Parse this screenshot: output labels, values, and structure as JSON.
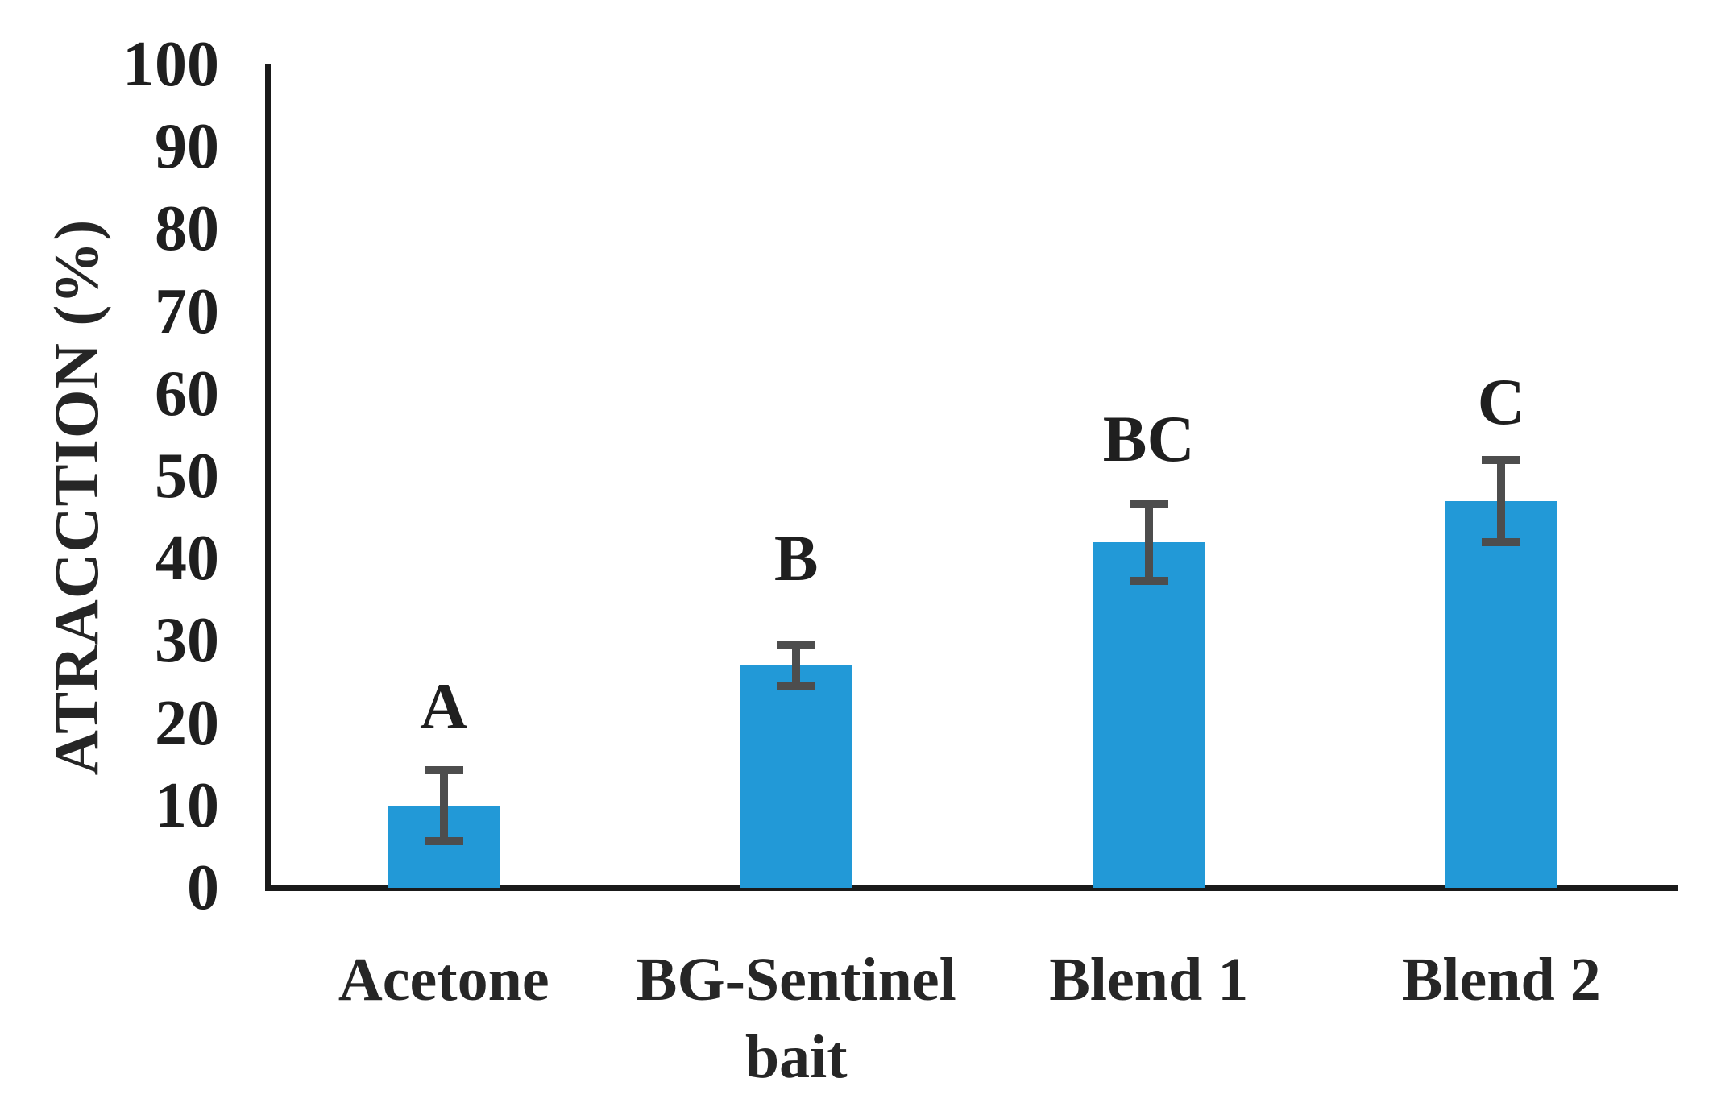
{
  "chart_data": {
    "type": "bar",
    "title": "",
    "xlabel": "",
    "ylabel": "ATRACCTION (%)",
    "ylim": [
      0,
      100
    ],
    "yticks": [
      0,
      10,
      20,
      30,
      40,
      50,
      60,
      70,
      80,
      90,
      100
    ],
    "grid": false,
    "legend": false,
    "categories": [
      "Acetone",
      "BG-Sentinel bait",
      "Blend 1",
      "Blend 2"
    ],
    "category_display": [
      "Acetone",
      "BG-Sentinel\nbait",
      "Blend 1",
      "Blend 2"
    ],
    "values": [
      10,
      27,
      42,
      47
    ],
    "errors": [
      4.3,
      2.5,
      4.7,
      5.0
    ],
    "significance_letters": [
      "A",
      "B",
      "BC",
      "C"
    ],
    "letter_center_values": [
      22,
      40,
      54.5,
      59
    ],
    "colors": {
      "bar": "#2299D7",
      "error_bar": "#4d4d4d",
      "axis": "#1a1a1a",
      "tick_text": "#1f1f1f",
      "label_text": "#262626"
    }
  }
}
